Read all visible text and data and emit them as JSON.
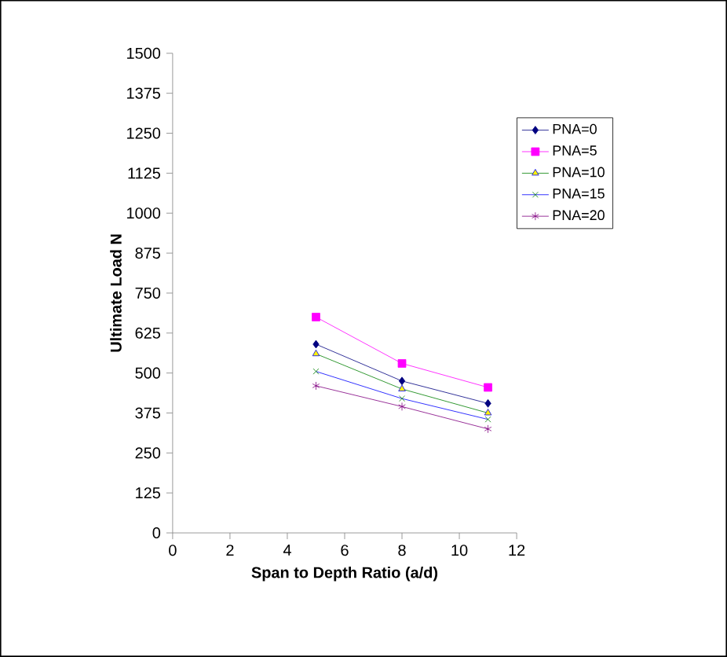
{
  "chart_data": {
    "type": "line",
    "xlabel": "Span to Depth Ratio (a/d)",
    "ylabel": "Ultimate Load N",
    "x": [
      5,
      8,
      11
    ],
    "xlim": [
      0,
      12
    ],
    "xticks": [
      0,
      2,
      4,
      6,
      8,
      10,
      12
    ],
    "ylim": [
      0,
      1500
    ],
    "yticks": [
      0,
      125,
      250,
      375,
      500,
      625,
      750,
      875,
      1000,
      1125,
      1250,
      1375,
      1500
    ],
    "grid": false,
    "legend": "right",
    "series": [
      {
        "name": "PNA=0",
        "color": "#000080",
        "marker": "diamond",
        "values": [
          590,
          475,
          405
        ]
      },
      {
        "name": "PNA=5",
        "color": "#ff00ff",
        "marker": "square",
        "values": [
          675,
          530,
          455
        ]
      },
      {
        "name": "PNA=10",
        "color": "#008000",
        "marker": "triangle",
        "values": [
          560,
          450,
          375
        ]
      },
      {
        "name": "PNA=15",
        "color": "#0000ff",
        "marker": "cross",
        "values": [
          505,
          420,
          355
        ]
      },
      {
        "name": "PNA=20",
        "color": "#800080",
        "marker": "cross",
        "values": [
          460,
          395,
          325
        ]
      }
    ]
  }
}
